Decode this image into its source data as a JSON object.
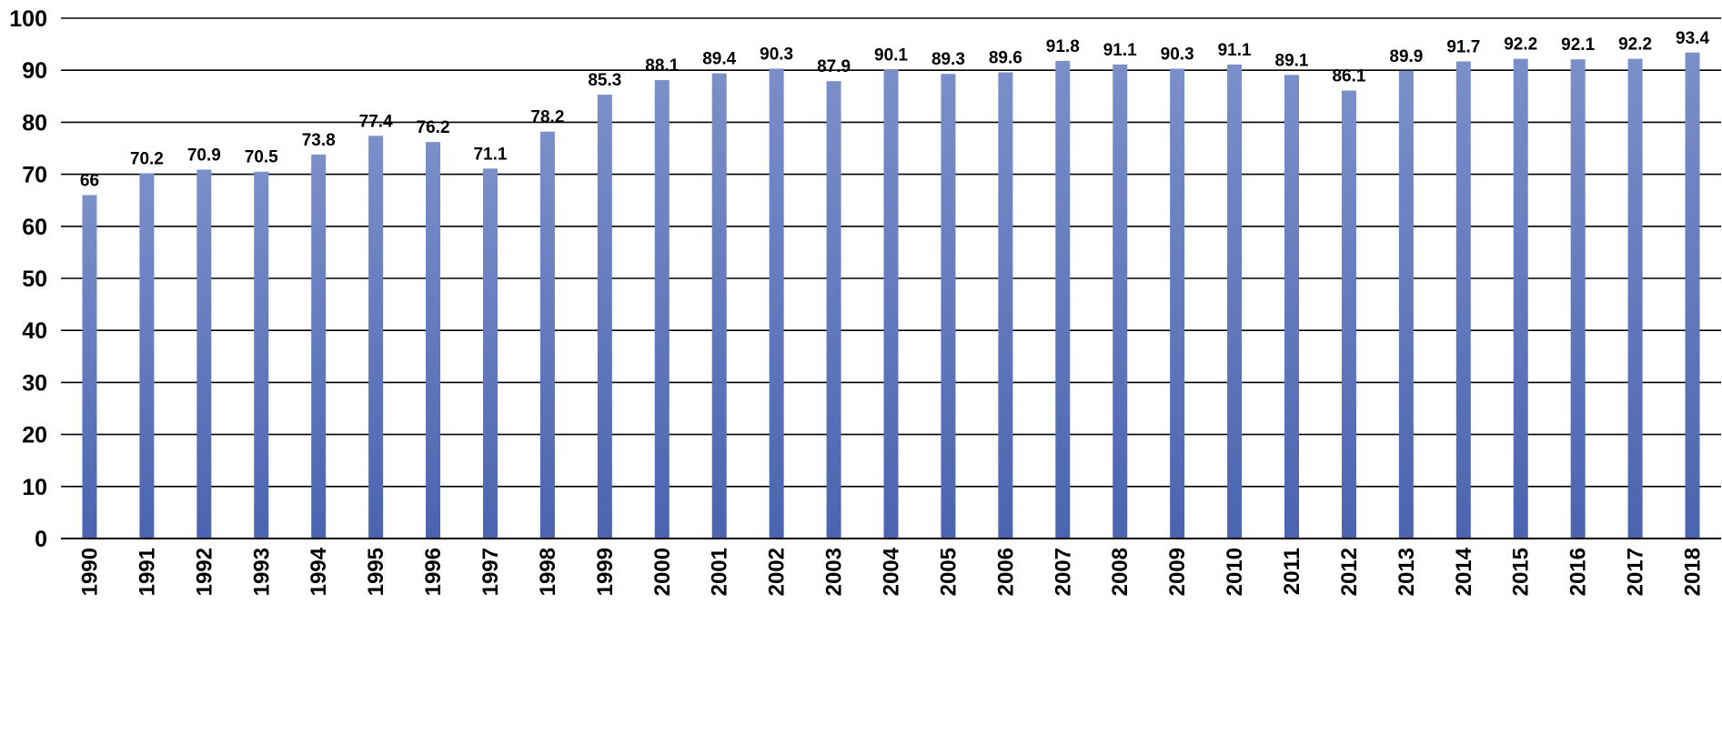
{
  "chart_data": {
    "type": "bar",
    "title": "",
    "xlabel": "",
    "ylabel": "",
    "categories": [
      "1990",
      "1991",
      "1992",
      "1993",
      "1994",
      "1995",
      "1996",
      "1997",
      "1998",
      "1999",
      "2000",
      "2001",
      "2002",
      "2003",
      "2004",
      "2005",
      "2006",
      "2007",
      "2008",
      "2009",
      "2010",
      "2011",
      "2012",
      "2013",
      "2014",
      "2015",
      "2016",
      "2017",
      "2018"
    ],
    "values": [
      66,
      70.2,
      70.9,
      70.5,
      73.8,
      77.4,
      76.2,
      71.1,
      78.2,
      85.3,
      88.1,
      89.4,
      90.3,
      87.9,
      90.1,
      89.3,
      89.6,
      91.8,
      91.1,
      90.3,
      91.1,
      89.1,
      86.1,
      89.9,
      91.7,
      92.2,
      92.1,
      92.2,
      93.4
    ],
    "data_labels": [
      "66",
      "70.2",
      "70.9",
      "70.5",
      "73.8",
      "77.4",
      "76.2",
      "71.1",
      "78.2",
      "85.3",
      "88.1",
      "89.4",
      "90.3",
      "87.9",
      "90.1",
      "89.3",
      "89.6",
      "91.8",
      "91.1",
      "90.3",
      "91.1",
      "89.1",
      "86.1",
      "89.9",
      "91.7",
      "92.2",
      "92.1",
      "92.2",
      "93.4"
    ],
    "ylim": [
      0,
      100
    ],
    "yticks": [
      "0",
      "10",
      "20",
      "30",
      "40",
      "50",
      "60",
      "70",
      "80",
      "90",
      "100"
    ],
    "grid": true,
    "legend": "none",
    "bar_color_top": "#7b8fc9",
    "bar_color_bottom": "#4a64b0"
  }
}
